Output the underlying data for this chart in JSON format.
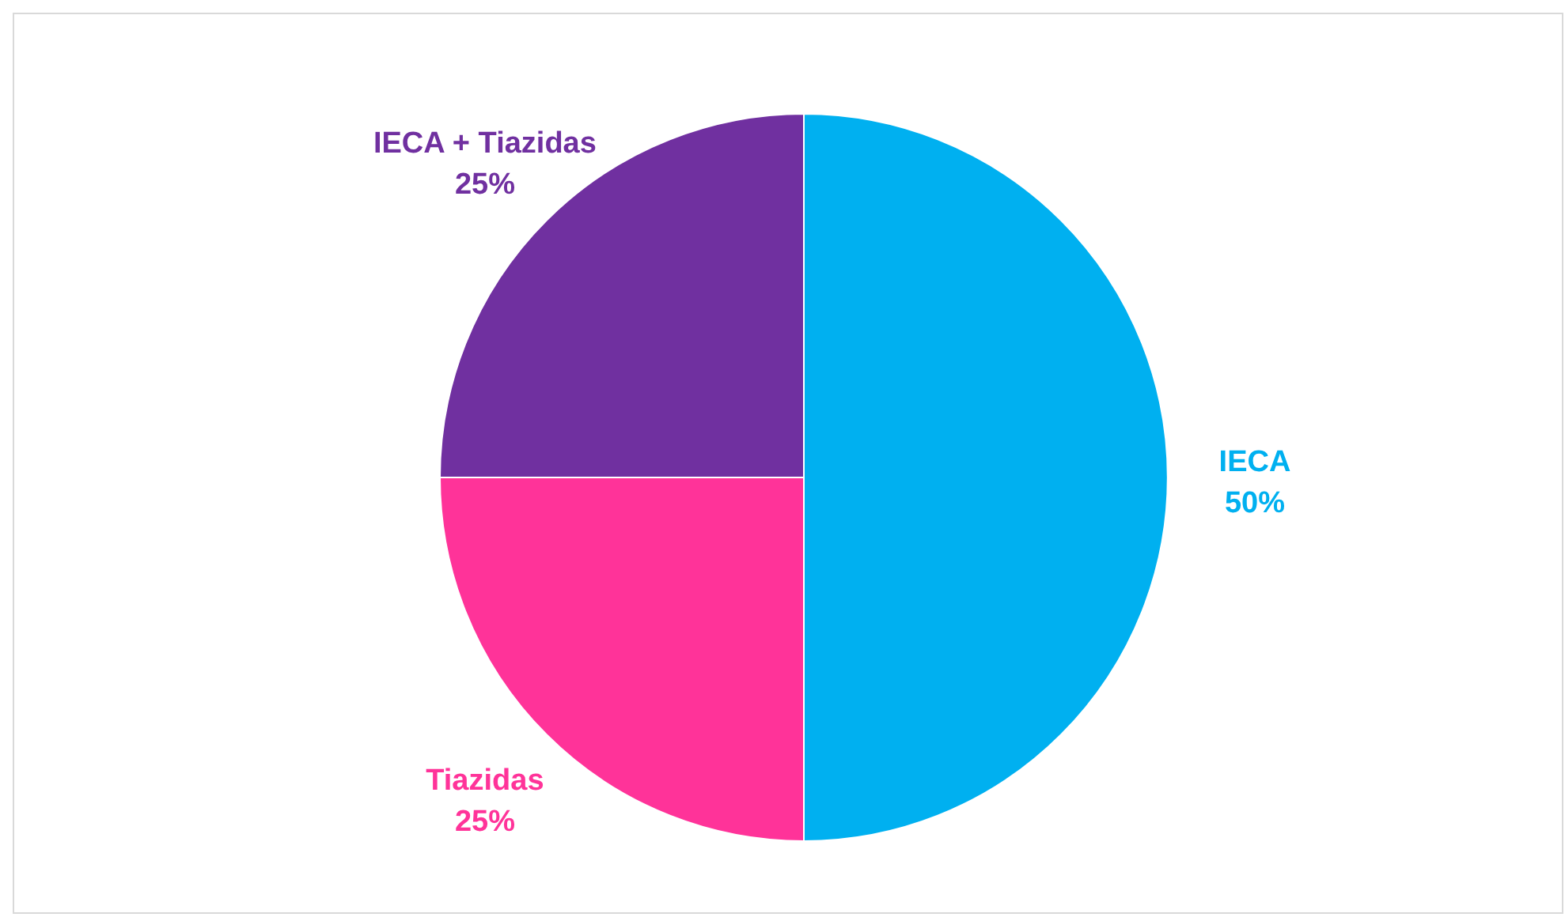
{
  "chart_data": {
    "type": "pie",
    "categories": [
      "IECA",
      "Tiazidas",
      "IECA + Tiazidas"
    ],
    "values": [
      50,
      25,
      25
    ],
    "colors": [
      "#00b0f0",
      "#ff3399",
      "#7030a0"
    ],
    "value_labels": [
      "50%",
      "25%",
      "25%"
    ]
  }
}
